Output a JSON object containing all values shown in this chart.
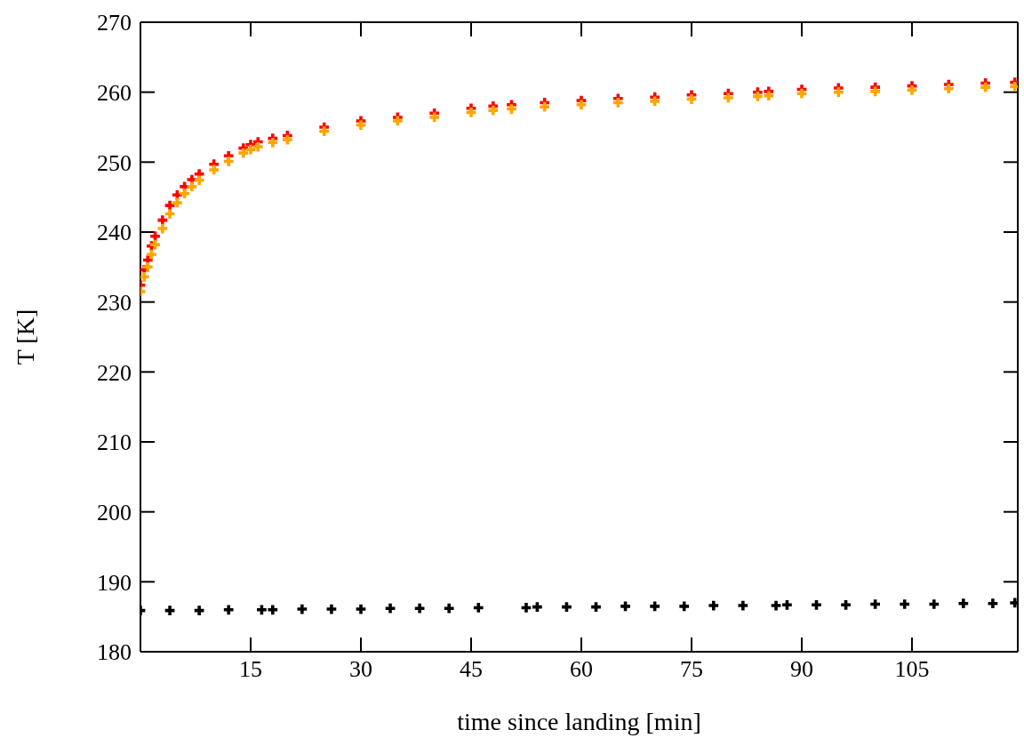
{
  "chart_data": {
    "type": "scatter",
    "xlabel": "time since landing [min]",
    "ylabel": "T [K]",
    "xlim": [
      0,
      119.4
    ],
    "xticks": [
      15,
      30,
      45,
      60,
      75,
      90,
      105
    ],
    "ylim": [
      180,
      270
    ],
    "yticks": [
      180,
      190,
      200,
      210,
      220,
      230,
      240,
      250,
      260,
      270
    ],
    "legend": false,
    "marker": "cross",
    "series": [
      {
        "color": "#ff0000",
        "x": [
          0,
          0.5,
          1,
          1.5,
          2,
          3,
          4,
          5,
          6,
          7,
          8,
          10,
          12,
          14,
          15,
          16,
          18,
          20,
          25,
          30,
          35,
          40,
          45,
          48,
          50.5,
          55,
          60,
          65,
          70,
          75,
          80,
          84,
          85.5,
          90,
          95,
          100,
          105,
          110,
          115,
          119
        ],
        "values": [
          232.4,
          234.6,
          236,
          238,
          239.4,
          241.7,
          243.8,
          245.3,
          246.5,
          247.5,
          248.3,
          249.7,
          250.9,
          252,
          252.5,
          252.9,
          253.4,
          253.8,
          255,
          255.9,
          256.4,
          257,
          257.7,
          258,
          258.2,
          258.5,
          258.8,
          259.1,
          259.3,
          259.6,
          259.8,
          260,
          260.1,
          260.4,
          260.6,
          260.7,
          260.9,
          261.1,
          261.3,
          261.4
        ]
      },
      {
        "color": "#ffa500",
        "x": [
          0,
          0.5,
          1,
          1.5,
          2,
          3,
          4,
          5,
          6,
          7,
          8,
          10,
          12,
          14,
          15,
          16,
          18,
          20,
          25,
          30,
          35,
          40,
          45,
          48,
          50.5,
          55,
          60,
          65,
          70,
          75,
          80,
          84,
          85.5,
          90,
          95,
          100,
          105,
          110,
          115,
          119
        ],
        "values": [
          231.5,
          233.6,
          235,
          236.8,
          238.2,
          240.5,
          242.6,
          244.2,
          245.5,
          246.5,
          247.4,
          248.9,
          250.1,
          251.3,
          251.8,
          252.2,
          252.8,
          253.2,
          254.4,
          255.3,
          255.9,
          256.4,
          257.1,
          257.4,
          257.6,
          257.9,
          258.2,
          258.5,
          258.7,
          259,
          259.2,
          259.4,
          259.5,
          259.8,
          260,
          260.1,
          260.3,
          260.5,
          260.7,
          260.8
        ]
      },
      {
        "color": "#000000",
        "x": [
          0,
          4,
          8,
          12,
          16.5,
          18,
          22,
          26,
          30,
          34,
          38,
          42,
          46,
          52.5,
          54,
          58,
          62,
          66,
          70,
          74,
          78,
          82,
          86.5,
          88,
          92,
          96,
          100,
          104,
          108,
          112,
          116,
          119
        ],
        "values": [
          185.9,
          185.9,
          185.9,
          186,
          186,
          186,
          186.1,
          186.1,
          186.1,
          186.2,
          186.2,
          186.2,
          186.3,
          186.3,
          186.4,
          186.4,
          186.4,
          186.5,
          186.5,
          186.5,
          186.6,
          186.6,
          186.6,
          186.7,
          186.7,
          186.7,
          186.8,
          186.8,
          186.8,
          186.9,
          186.9,
          187
        ]
      }
    ]
  }
}
